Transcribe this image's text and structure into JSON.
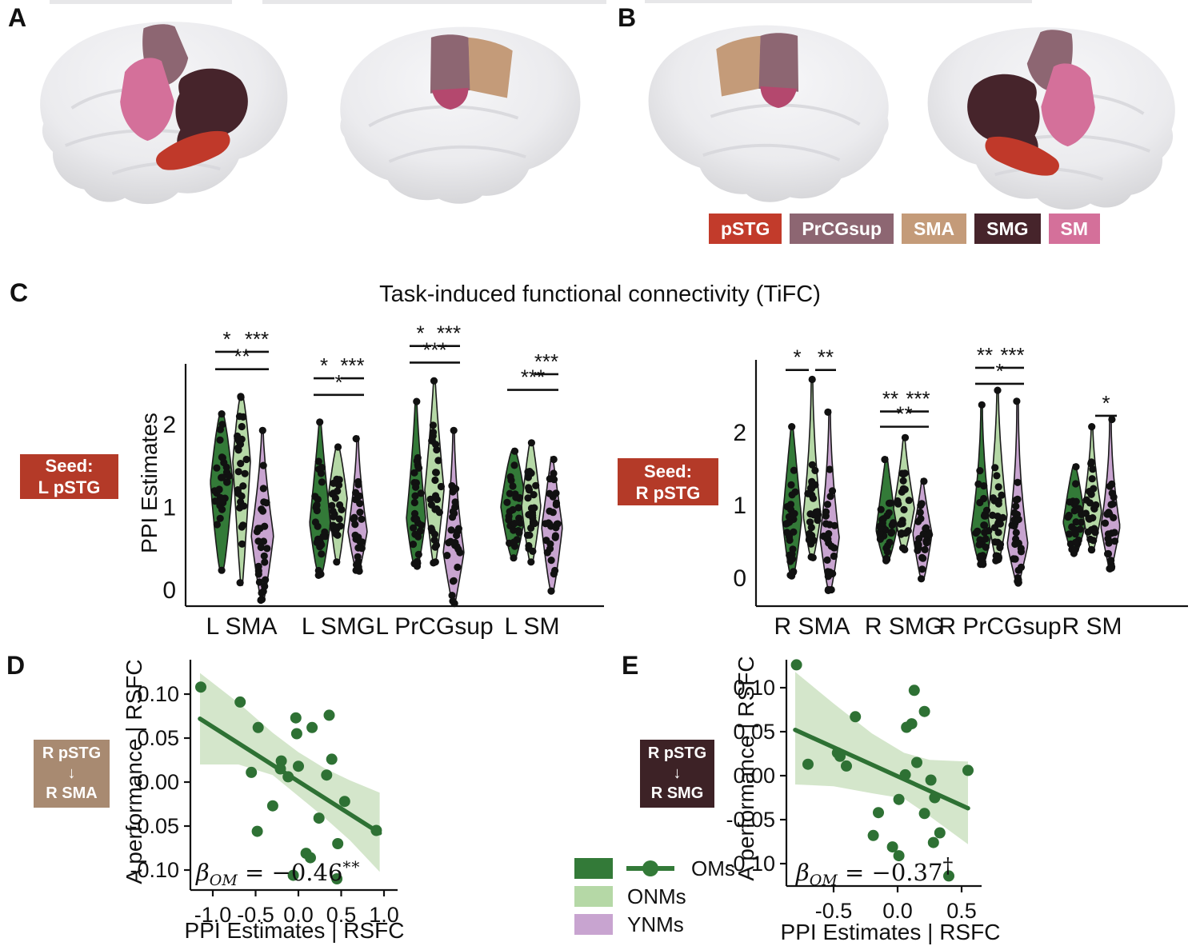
{
  "panels": {
    "a": "A",
    "b": "B",
    "c": "C",
    "d": "D",
    "e": "E"
  },
  "panel_c": {
    "title": "Task-induced functional connectivity (TiFC)"
  },
  "region_legend": {
    "items": [
      {
        "label": "pSTG",
        "color": "#c23b2b"
      },
      {
        "label": "PrCGsup",
        "color": "#8d6672"
      },
      {
        "label": "SMA",
        "color": "#c49b79"
      },
      {
        "label": "SMG",
        "color": "#46242b"
      },
      {
        "label": "SM",
        "color": "#d4709a"
      }
    ]
  },
  "group_legend": {
    "items": [
      {
        "label": "OMs",
        "color": "#337a38"
      },
      {
        "label": "ONMs",
        "color": "#b5d8a6"
      },
      {
        "label": "YNMs",
        "color": "#c8a4d0"
      }
    ]
  },
  "brain_colors": {
    "surface": "#ebebee",
    "pSTG": "#c0392a",
    "PrCGsup": "#8d6672",
    "SMA": "#c49b79",
    "SMG": "#46242b",
    "SM": "#d4709a"
  },
  "chart_data": [
    {
      "type": "violin",
      "id": "violin-left",
      "seed_box": {
        "lines": [
          "Seed:",
          "L pSTG"
        ],
        "color": "#b43a28"
      },
      "ylabel": "PPI Estimates",
      "yticks": [
        0,
        1,
        2
      ],
      "ytick_labels": [
        "0",
        "1",
        "2"
      ],
      "ylim": [
        -0.35,
        3.0
      ],
      "categories": [
        "L SMA",
        "L SMG",
        "L PrCGsup",
        "L SM"
      ],
      "groups": [
        "OMs",
        "ONMs",
        "YNMs"
      ],
      "group_colors": [
        "#337a38",
        "#b5d8a6",
        "#c8a4d0"
      ],
      "violins": [
        [
          {
            "min": 0.2,
            "max": 2.15,
            "mode": 1.3,
            "w": 13,
            "pt": 0.7,
            "pb": 0.7,
            "n": 30
          },
          {
            "min": 0.05,
            "max": 2.35,
            "mode": 1.55,
            "w": 10,
            "pt": 0.7,
            "pb": 0.9,
            "n": 28
          },
          {
            "min": -0.15,
            "max": 1.95,
            "mode": 0.65,
            "w": 13,
            "pt": 1.5,
            "pb": 0.8,
            "n": 28
          }
        ],
        [
          {
            "min": 0.15,
            "max": 2.05,
            "mode": 0.8,
            "w": 12,
            "pt": 1.1,
            "pb": 0.7,
            "n": 28
          },
          {
            "min": 0.3,
            "max": 1.75,
            "mode": 1.1,
            "w": 11,
            "pt": 0.8,
            "pb": 0.8,
            "n": 26
          },
          {
            "min": 0.2,
            "max": 1.85,
            "mode": 0.7,
            "w": 11,
            "pt": 1.6,
            "pb": 0.8,
            "n": 28
          }
        ],
        [
          {
            "min": 0.25,
            "max": 2.3,
            "mode": 0.85,
            "w": 11,
            "pt": 1.3,
            "pb": 0.7,
            "n": 28
          },
          {
            "min": 0.3,
            "max": 2.55,
            "mode": 1.2,
            "w": 11,
            "pt": 1.2,
            "pb": 0.8,
            "n": 28
          },
          {
            "min": -0.2,
            "max": 1.95,
            "mode": 0.45,
            "w": 12,
            "pt": 1.8,
            "pb": 0.9,
            "n": 28
          }
        ],
        [
          {
            "min": 0.35,
            "max": 1.7,
            "mode": 1.0,
            "w": 15,
            "pt": 0.7,
            "pb": 0.7,
            "n": 28
          },
          {
            "min": 0.3,
            "max": 1.8,
            "mode": 1.0,
            "w": 11,
            "pt": 0.8,
            "pb": 0.8,
            "n": 26
          },
          {
            "min": -0.05,
            "max": 1.6,
            "mode": 0.75,
            "w": 12,
            "pt": 1.0,
            "pb": 0.8,
            "n": 28
          }
        ]
      ],
      "sig": [
        [
          {
            "pair": [
              0,
              1
            ],
            "label": "*",
            "y": 2.87
          },
          {
            "pair": [
              1,
              2
            ],
            "label": "***",
            "y": 2.87
          },
          {
            "pair": [
              0,
              2
            ],
            "label": "**",
            "y": 2.66
          }
        ],
        [
          {
            "pair": [
              0,
              1
            ],
            "label": "*",
            "y": 2.55
          },
          {
            "pair": [
              1,
              2
            ],
            "label": "***",
            "y": 2.55
          },
          {
            "pair": [
              0,
              2
            ],
            "label": "*",
            "y": 2.35
          }
        ],
        [
          {
            "pair": [
              0,
              1
            ],
            "label": "*",
            "y": 2.94
          },
          {
            "pair": [
              1,
              2
            ],
            "label": "***",
            "y": 2.94
          },
          {
            "pair": [
              0,
              2
            ],
            "label": "***",
            "y": 2.74
          }
        ],
        [
          {
            "pair": [
              1,
              2
            ],
            "label": "***",
            "y": 2.6
          },
          {
            "pair": [
              0,
              2
            ],
            "label": "***",
            "y": 2.41
          }
        ]
      ]
    },
    {
      "type": "violin",
      "id": "violin-right",
      "seed_box": {
        "lines": [
          "Seed:",
          "R pSTG"
        ],
        "color": "#b43a28"
      },
      "ylabel": "",
      "yticks": [
        0,
        1,
        2
      ],
      "ytick_labels": [
        "0",
        "1",
        "2"
      ],
      "ylim": [
        -0.35,
        3.0
      ],
      "categories": [
        "R SMA",
        "R SMG",
        "R PrCGsup",
        "R SM"
      ],
      "groups": [
        "OMs",
        "ONMs",
        "YNMs"
      ],
      "group_colors": [
        "#337a38",
        "#b5d8a6",
        "#c8a4d0"
      ],
      "violins": [
        [
          {
            "min": 0.0,
            "max": 2.1,
            "mode": 0.8,
            "w": 11,
            "pt": 1.0,
            "pb": 0.7,
            "n": 30
          },
          {
            "min": 0.25,
            "max": 2.75,
            "mode": 0.85,
            "w": 10,
            "pt": 1.8,
            "pb": 0.8,
            "n": 28
          },
          {
            "min": -0.2,
            "max": 2.3,
            "mode": 0.55,
            "w": 11,
            "pt": 1.8,
            "pb": 0.8,
            "n": 28
          }
        ],
        [
          {
            "min": 0.2,
            "max": 1.65,
            "mode": 0.65,
            "w": 12,
            "pt": 1.0,
            "pb": 0.7,
            "n": 28
          },
          {
            "min": 0.35,
            "max": 1.95,
            "mode": 0.95,
            "w": 12,
            "pt": 1.3,
            "pb": 0.8,
            "n": 26
          },
          {
            "min": -0.05,
            "max": 1.35,
            "mode": 0.6,
            "w": 11,
            "pt": 1.2,
            "pb": 0.8,
            "n": 28
          }
        ],
        [
          {
            "min": 0.15,
            "max": 2.4,
            "mode": 0.65,
            "w": 12,
            "pt": 1.9,
            "pb": 0.7,
            "n": 28
          },
          {
            "min": 0.2,
            "max": 2.6,
            "mode": 0.85,
            "w": 11,
            "pt": 1.7,
            "pb": 0.8,
            "n": 28
          },
          {
            "min": -0.1,
            "max": 2.45,
            "mode": 0.45,
            "w": 12,
            "pt": 2.2,
            "pb": 0.9,
            "n": 28
          }
        ],
        [
          {
            "min": 0.3,
            "max": 1.55,
            "mode": 0.75,
            "w": 13,
            "pt": 0.8,
            "pb": 0.7,
            "n": 26
          },
          {
            "min": 0.35,
            "max": 2.1,
            "mode": 0.9,
            "w": 11,
            "pt": 1.6,
            "pb": 0.8,
            "n": 26
          },
          {
            "min": 0.1,
            "max": 2.2,
            "mode": 0.7,
            "w": 11,
            "pt": 2.0,
            "pb": 0.9,
            "n": 28
          }
        ]
      ],
      "sig": [
        [
          {
            "pair": [
              0,
              1
            ],
            "label": "*",
            "y": 2.85
          },
          {
            "pair": [
              1,
              2
            ],
            "label": "**",
            "y": 2.85
          }
        ],
        [
          {
            "pair": [
              0,
              1
            ],
            "label": "**",
            "y": 2.28
          },
          {
            "pair": [
              1,
              2
            ],
            "label": "***",
            "y": 2.28
          },
          {
            "pair": [
              0,
              2
            ],
            "label": "**",
            "y": 2.07
          }
        ],
        [
          {
            "pair": [
              0,
              1
            ],
            "label": "**",
            "y": 2.88
          },
          {
            "pair": [
              1,
              2
            ],
            "label": "***",
            "y": 2.88
          },
          {
            "pair": [
              0,
              2
            ],
            "label": "*",
            "y": 2.66
          }
        ],
        [
          {
            "pair": [
              1,
              2
            ],
            "label": "*",
            "y": 2.22
          }
        ]
      ]
    },
    {
      "type": "scatter",
      "id": "scatter-d",
      "seed_box": {
        "lines": [
          "R pSTG",
          "↓",
          "R SMA"
        ],
        "color": "#a88a71"
      },
      "xlabel": "PPI Estimates | RSFC",
      "ylabel": "A performance | RSFC",
      "xticks": [
        -1.0,
        -0.5,
        0.0,
        0.5,
        1.0
      ],
      "xtick_labels": [
        "-1.0",
        "-0.5",
        "0.0",
        "0.5",
        "1.0"
      ],
      "yticks": [
        0.1,
        0.05,
        0.0,
        -0.05,
        -0.1
      ],
      "ytick_labels": [
        "0.10",
        "0.05",
        "0.00",
        "-0.05",
        "-0.10"
      ],
      "xlim": [
        -1.25,
        1.05
      ],
      "ylim": [
        -0.125,
        0.135
      ],
      "point_color": "#2e7134",
      "band_color": "#b7d6a8",
      "points": [
        [
          -1.14,
          0.108
        ],
        [
          -0.68,
          0.091
        ],
        [
          -0.47,
          0.062
        ],
        [
          -0.03,
          0.073
        ],
        [
          -0.02,
          0.055
        ],
        [
          0.16,
          0.062
        ],
        [
          0.36,
          0.076
        ],
        [
          -0.2,
          0.024
        ],
        [
          -0.21,
          0.015
        ],
        [
          -0.55,
          0.011
        ],
        [
          -0.12,
          0.006
        ],
        [
          0.0,
          0.018
        ],
        [
          0.39,
          0.026
        ],
        [
          0.33,
          0.008
        ],
        [
          0.54,
          -0.022
        ],
        [
          -0.3,
          -0.027
        ],
        [
          0.24,
          -0.041
        ],
        [
          -0.48,
          -0.056
        ],
        [
          0.46,
          -0.07
        ],
        [
          0.09,
          -0.081
        ],
        [
          0.14,
          -0.086
        ],
        [
          -0.06,
          -0.106
        ],
        [
          0.45,
          -0.11
        ],
        [
          0.91,
          -0.055
        ]
      ],
      "line": [
        [
          -1.15,
          0.072
        ],
        [
          0.95,
          -0.058
        ]
      ],
      "band": {
        "x": [
          -1.15,
          -0.7,
          -0.3,
          0.0,
          0.3,
          0.6,
          0.95
        ],
        "upper": [
          0.124,
          0.09,
          0.056,
          0.034,
          0.016,
          0.002,
          -0.012
        ],
        "lower": [
          0.02,
          0.02,
          0.008,
          -0.016,
          -0.04,
          -0.066,
          -0.102
        ]
      },
      "beta": {
        "sym": "β",
        "sub": "OM",
        "mid": " = −0.46",
        "sup": "**"
      }
    },
    {
      "type": "scatter",
      "id": "scatter-e",
      "seed_box": {
        "lines": [
          "R pSTG",
          "↓",
          "R SMG"
        ],
        "color": "#3d2226"
      },
      "xlabel": "PPI Estimates | RSFC",
      "ylabel": "A performance | RSFC",
      "xticks": [
        -0.5,
        0.0,
        0.5
      ],
      "xtick_labels": [
        "-0.5",
        "0.0",
        "0.5"
      ],
      "yticks": [
        0.1,
        0.05,
        0.0,
        -0.05,
        -0.1
      ],
      "ytick_labels": [
        "0.10",
        "0.05",
        "0.00",
        "-0.05",
        "-0.10"
      ],
      "xlim": [
        -0.85,
        0.62
      ],
      "ylim": [
        -0.125,
        0.135
      ],
      "point_color": "#2e7134",
      "band_color": "#b7d6a8",
      "points": [
        [
          -0.79,
          0.126
        ],
        [
          0.13,
          0.097
        ],
        [
          0.21,
          0.073
        ],
        [
          0.07,
          0.055
        ],
        [
          0.11,
          0.059
        ],
        [
          -0.33,
          0.067
        ],
        [
          -0.47,
          0.026
        ],
        [
          -0.45,
          0.022
        ],
        [
          -0.7,
          0.013
        ],
        [
          -0.4,
          0.011
        ],
        [
          0.15,
          0.015
        ],
        [
          0.06,
          0.001
        ],
        [
          0.26,
          -0.005
        ],
        [
          0.55,
          0.006
        ],
        [
          0.29,
          -0.025
        ],
        [
          0.01,
          -0.027
        ],
        [
          0.21,
          -0.043
        ],
        [
          -0.15,
          -0.042
        ],
        [
          -0.19,
          -0.068
        ],
        [
          0.33,
          -0.065
        ],
        [
          0.28,
          -0.076
        ],
        [
          -0.04,
          -0.081
        ],
        [
          0.01,
          -0.091
        ],
        [
          0.4,
          -0.114
        ]
      ],
      "line": [
        [
          -0.8,
          0.052
        ],
        [
          0.55,
          -0.037
        ]
      ],
      "band": {
        "x": [
          -0.8,
          -0.5,
          -0.2,
          0.05,
          0.25,
          0.55
        ],
        "upper": [
          0.118,
          0.082,
          0.048,
          0.026,
          0.018,
          0.016
        ],
        "lower": [
          -0.01,
          -0.012,
          -0.02,
          -0.026,
          -0.046,
          -0.078
        ]
      },
      "beta": {
        "sym": "β",
        "sub": "OM",
        "mid": " = −0.37",
        "sup": "†"
      }
    }
  ]
}
